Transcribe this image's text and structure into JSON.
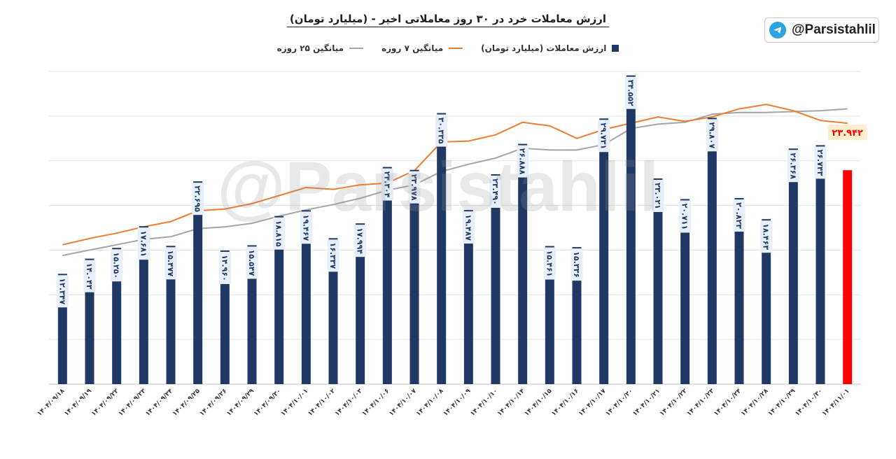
{
  "chart_data": {
    "type": "bar",
    "title": "ارزش معاملات خرد در ۳۰ روز معاملاتی اخیر - (میلیارد تومان)",
    "legend_placement": "top",
    "grid": true,
    "ylim": [
      0,
      35
    ],
    "categories": [
      "۱۴۰۴/۰۹/۱۸",
      "۱۴۰۴/۰۹/۱۹",
      "۱۴۰۴/۰۹/۲۲",
      "۱۴۰۴/۰۹/۲۳",
      "۱۴۰۴/۰۹/۲۴",
      "۱۴۰۴/۰۹/۲۵",
      "۱۴۰۴/۰۹/۲۶",
      "۱۴۰۴/۰۹/۲۹",
      "۱۴۰۴/۰۹/۳۰",
      "۱۴۰۴/۱۰/۰۱",
      "۱۴۰۴/۱۰/۰۲",
      "۱۴۰۴/۱۰/۰۳",
      "۱۴۰۴/۱۰/۰۶",
      "۱۴۰۴/۱۰/۰۷",
      "۱۴۰۴/۱۰/۰۸",
      "۱۴۰۴/۱۰/۰۹",
      "۱۴۰۴/۱۰/۱۰",
      "۱۴۰۴/۱۰/۱۴",
      "۱۴۰۴/۱۰/۱۵",
      "۱۴۰۴/۱۰/۱۶",
      "۱۴۰۴/۱۰/۱۷",
      "۱۴۰۴/۱۰/۲۰",
      "۱۴۰۴/۱۰/۲۱",
      "۱۴۰۴/۱۰/۲۲",
      "۱۴۰۴/۱۰/۲۳",
      "۱۴۰۴/۱۰/۲۴",
      "۱۴۰۴/۱۰/۲۸",
      "۱۴۰۴/۱۰/۲۹",
      "۱۴۰۴/۱۰/۳۰",
      "۱۴۰۴/۱۱/۰۱"
    ],
    "bar_labels": [
      "۱۲.۳۴۷",
      "۱۴.۰۴۳",
      "۱۵.۲۵۰",
      "۱۷.۶۸۱",
      "۱۵.۴۷۷",
      "۲۲.۶۹۵",
      "۱۴.۹۶۰",
      "۱۵.۵۴۷",
      "۱۸.۸۱۵",
      "۱۹.۴۶۷",
      "۱۶.۳۳۷",
      "۱۷.۹۹۴",
      "۲۴.۳۰۴",
      "۲۳.۹۷۸",
      "۳۰.۳۳۵",
      "۱۹.۴۸۷",
      "۲۳.۴۹۰",
      "۲۶.۸۸۸",
      "۱۵.۴۶۱",
      "۱۵.۳۳۶",
      "۲۹.۷۳۱",
      "۳۴.۵۵۲",
      "۲۳.۰۲۱",
      "۲۰.۷۱۱",
      "۲۹.۸۰۷",
      "۲۰.۸۲۳",
      "۱۸.۴۶۳",
      "۲۶.۳۶۸",
      "۲۶.۷۴۳",
      "۲۳.۹۴۲"
    ],
    "series": [
      {
        "name": "ارزش معاملات (میلیارد تومان)",
        "type": "bar",
        "color": "#1f3864",
        "highlight_last_color": "#ff0000",
        "values": [
          12.347,
          14.043,
          15.25,
          17.681,
          15.477,
          22.695,
          14.96,
          15.547,
          18.815,
          19.467,
          16.337,
          17.994,
          24.304,
          23.978,
          30.335,
          19.487,
          23.49,
          26.888,
          15.461,
          15.336,
          29.731,
          34.552,
          23.021,
          20.711,
          29.807,
          20.823,
          18.463,
          26.368,
          26.743,
          23.942
        ]
      },
      {
        "name": "میانگین ۷ روزه",
        "type": "line",
        "color": "#ed7d31",
        "values": [
          15.6,
          16.3,
          16.9,
          17.6,
          18.2,
          19.4,
          19.6,
          20.2,
          21.1,
          22.0,
          21.8,
          22.3,
          22.5,
          23.9,
          27.1,
          27.2,
          27.9,
          29.3,
          28.9,
          27.5,
          28.5,
          29.2,
          29.9,
          29.4,
          29.9,
          30.8,
          31.3,
          30.6,
          29.5,
          29.2
        ],
        "last_label": "۲۳.۹۴۲"
      },
      {
        "name": "میانگین ۲۵ روزه",
        "type": "line",
        "color": "#a5a5a5",
        "values": [
          14.4,
          15.0,
          15.6,
          16.2,
          16.5,
          17.4,
          17.6,
          18.0,
          18.8,
          19.5,
          20.1,
          20.8,
          21.7,
          22.3,
          23.8,
          24.6,
          25.3,
          26.4,
          26.2,
          26.2,
          26.8,
          28.6,
          29.1,
          29.3,
          30.2,
          30.4,
          30.4,
          30.5,
          30.6,
          30.8
        ]
      }
    ]
  },
  "badge": {
    "handle": "@Parsistahlil",
    "icon": "telegram-icon"
  },
  "watermark": "@Parsistahlil"
}
